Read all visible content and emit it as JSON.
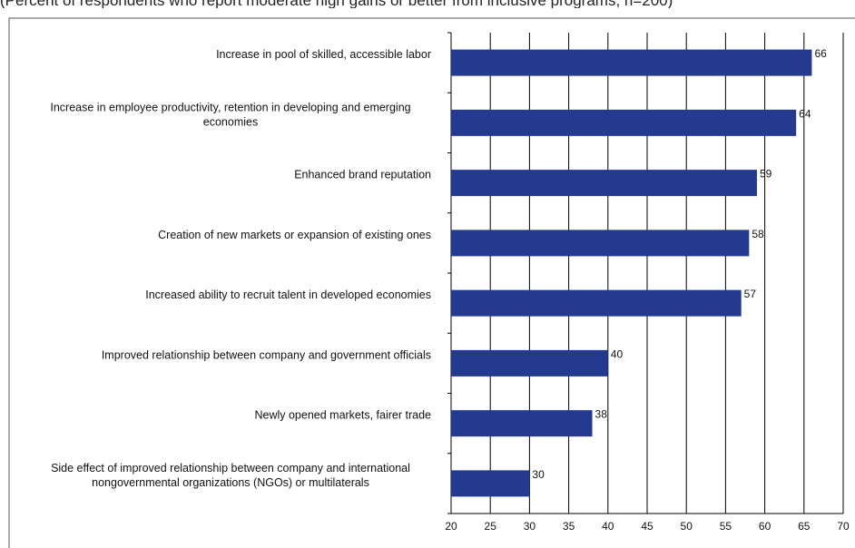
{
  "header": {
    "subtitle": "(Percent of respondents who report moderate high gains or better from inclusive programs; n=200)"
  },
  "colors": {
    "bar": "#233a8f",
    "grid": "#000000",
    "frame": "#555555"
  },
  "chart_data": {
    "type": "bar",
    "orientation": "horizontal",
    "title": "",
    "xlabel": "",
    "ylabel": "",
    "xlim": [
      20,
      70
    ],
    "xticks": [
      20,
      25,
      30,
      35,
      40,
      45,
      50,
      55,
      60,
      65,
      70
    ],
    "grid": true,
    "categories": [
      [
        "Increase in pool of skilled, accessible labor"
      ],
      [
        "Increase in employee productivity, retention in developing and emerging",
        "economies"
      ],
      [
        "Enhanced brand reputation"
      ],
      [
        "Creation of new markets or expansion of existing ones"
      ],
      [
        "Increased ability to recruit talent in developed economies"
      ],
      [
        "Improved relationship between company and government officials"
      ],
      [
        "Newly opened markets, fairer trade"
      ],
      [
        "Side effect of improved relationship between company and international",
        "nongovernmental organizations (NGOs) or multilaterals"
      ]
    ],
    "values": [
      66,
      64,
      59,
      58,
      57,
      40,
      38,
      30
    ],
    "data_labels": [
      "66",
      "64",
      "59",
      "58",
      "57",
      "40",
      "38",
      "30"
    ]
  }
}
